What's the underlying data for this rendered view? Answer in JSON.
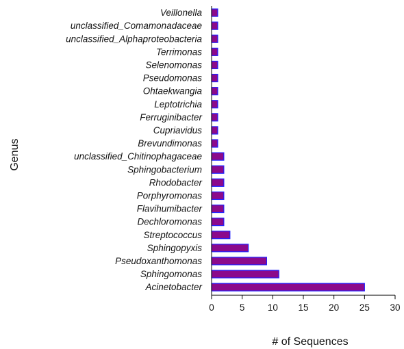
{
  "chart_data": {
    "type": "bar",
    "orientation": "horizontal",
    "categories": [
      "Veillonella",
      "unclassified_Comamonadaceae",
      "unclassified_Alphaproteobacteria",
      "Terrimonas",
      "Selenomonas",
      "Pseudomonas",
      "Ohtaekwangia",
      "Leptotrichia",
      "Ferruginibacter",
      "Cupriavidus",
      "Brevundimonas",
      "unclassified_Chitinophagaceae",
      "Sphingobacterium",
      "Rhodobacter",
      "Porphyromonas",
      "Flavihumibacter",
      "Dechloromonas",
      "Streptococcus",
      "Sphingopyxis",
      "Pseudoxanthomonas",
      "Sphingomonas",
      "Acinetobacter"
    ],
    "values": [
      1,
      1,
      1,
      1,
      1,
      1,
      1,
      1,
      1,
      1,
      1,
      2,
      2,
      2,
      2,
      2,
      2,
      3,
      6,
      9,
      11,
      25
    ],
    "title": "",
    "xlabel": "# of Sequences",
    "ylabel": "Genus",
    "xlim": [
      0,
      30
    ],
    "xticks": [
      0,
      5,
      10,
      15,
      20,
      25,
      30
    ],
    "grid": false,
    "legend": "none",
    "bar_fill": "#8b0a8b",
    "bar_stroke": "#2020ff"
  }
}
